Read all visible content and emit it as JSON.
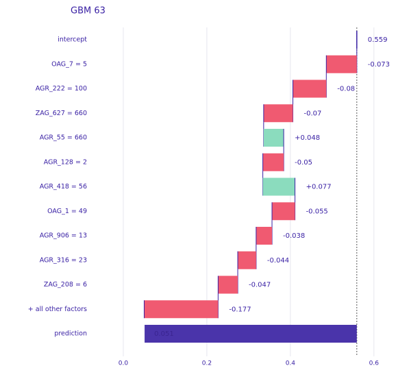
{
  "chart_data": {
    "type": "waterfall",
    "title": "GBM 63",
    "categories": [
      "intercept",
      "OAG_7 = 5",
      "AGR_222 = 100",
      "ZAG_627 = 660",
      "AGR_55 = 660",
      "AGR_128 = 2",
      "AGR_418 = 56",
      "OAG_1 = 49",
      "AGR_906 = 13",
      "AGR_316 = 23",
      "ZAG_208 = 6",
      "+ all other factors",
      "prediction"
    ],
    "values": [
      0.559,
      -0.073,
      -0.08,
      -0.07,
      0.048,
      -0.05,
      0.077,
      -0.055,
      -0.038,
      -0.044,
      -0.047,
      -0.177,
      0.051
    ],
    "value_labels": [
      "0.559",
      "-0.073",
      "-0.08",
      "-0.07",
      "+0.048",
      "-0.05",
      "+0.077",
      "-0.055",
      "-0.038",
      "-0.044",
      "-0.047",
      "-0.177",
      "0.051"
    ],
    "colors": {
      "positive": "#8bdcbe",
      "negative": "#f05a71",
      "prediction": "#4a34aa"
    },
    "xlim": [
      -0.1,
      0.62
    ],
    "xticks": [
      {
        "value": 0,
        "label": "0.0"
      },
      0.2,
      0.4,
      0.6
    ],
    "grid": true
  }
}
